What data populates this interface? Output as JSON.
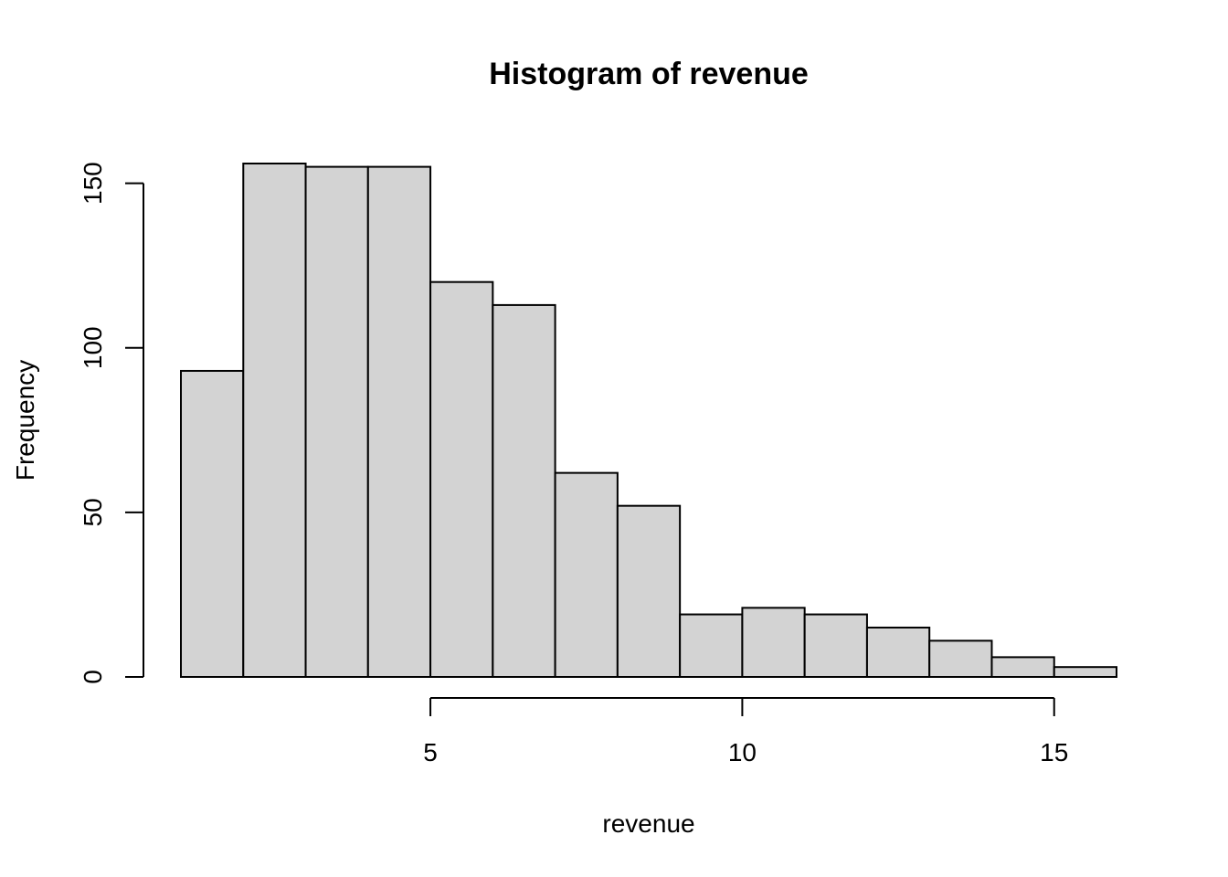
{
  "chart_data": {
    "type": "bar",
    "title": "Histogram of revenue",
    "xlabel": "revenue",
    "ylabel": "Frequency",
    "bin_edges": [
      1,
      2,
      3,
      4,
      5,
      6,
      7,
      8,
      9,
      10,
      11,
      12,
      13,
      14,
      15,
      16
    ],
    "values": [
      93,
      156,
      155,
      155,
      120,
      113,
      62,
      52,
      19,
      21,
      19,
      15,
      11,
      6,
      3
    ],
    "xlim": [
      1,
      16
    ],
    "ylim": [
      0,
      156
    ],
    "x_ticks": [
      5,
      10,
      15
    ],
    "y_ticks": [
      0,
      50,
      100,
      150
    ],
    "bar_color": "#d3d3d3",
    "grid": false,
    "legend": "none"
  }
}
